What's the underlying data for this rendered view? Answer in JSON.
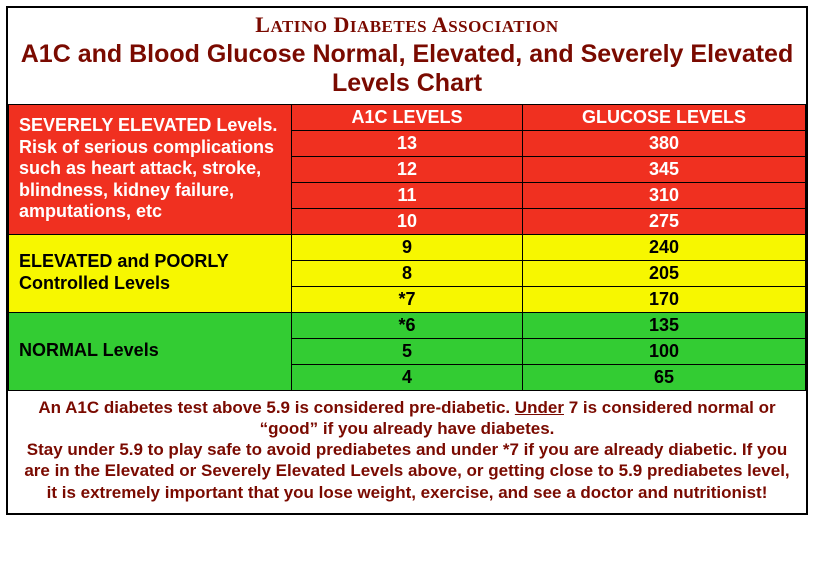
{
  "org": "LATINO DIABETES ASSOCIATION",
  "title": "A1C and Blood Glucose Normal, Elevated, and Severely Elevated Levels Chart",
  "columns": {
    "a1c": "A1C LEVELS",
    "glucose": "GLUCOSE LEVELS"
  },
  "sections": {
    "severe": {
      "label": "SEVERELY ELEVATED Levels. Risk of serious complications   such as heart attack, stroke, blindness, kidney failure, amputations, etc",
      "color": "#f03020",
      "text_color": "#ffffff",
      "rows": [
        {
          "a1c": "13",
          "glucose": "380"
        },
        {
          "a1c": "12",
          "glucose": "345"
        },
        {
          "a1c": "11",
          "glucose": "310"
        },
        {
          "a1c": "10",
          "glucose": "275"
        }
      ]
    },
    "elevated": {
      "label": "ELEVATED and POORLY Controlled Levels",
      "color": "#f7f700",
      "text_color": "#000000",
      "rows": [
        {
          "a1c": "9",
          "glucose": "240"
        },
        {
          "a1c": "8",
          "glucose": "205"
        },
        {
          "a1c": "*7",
          "glucose": "170"
        }
      ]
    },
    "normal": {
      "label": "NORMAL Levels",
      "color": "#33cc33",
      "text_color": "#000000",
      "rows": [
        {
          "a1c": "*6",
          "glucose": "135"
        },
        {
          "a1c": "5",
          "glucose": "100"
        },
        {
          "a1c": "4",
          "glucose": "65"
        }
      ]
    }
  },
  "footnote_html": "An A1C diabetes test above 5.9 is considered pre-diabetic. <span class='u'>Under</span> 7 is considered normal or “good” if you already have diabetes.<br>Stay under 5.9 to play safe to avoid prediabetes and under *7 if you are already diabetic. If you are in the Elevated or Severely Elevated Levels above, or getting close to 5.9 prediabetes level, it is extremely important that you lose weight, exercise, and see a doctor and nutritionist!",
  "styling": {
    "type": "table",
    "frame_border_color": "#000000",
    "cell_border_color": "#000000",
    "title_color": "#7a0a00",
    "footnote_color": "#7a0a00",
    "background_color": "#ffffff",
    "org_fontsize": 22,
    "title_fontsize": 25,
    "section_label_fontsize": 18,
    "value_fontsize": 18,
    "footnote_fontsize": 17,
    "col_widths_pct": [
      35.5,
      29,
      35.5
    ]
  }
}
